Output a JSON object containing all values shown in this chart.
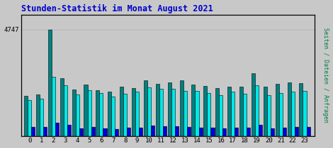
{
  "title": "Stunden-Statistik im Monat August 2021",
  "ylabel": "Seiten / Dateien / Anfragen",
  "ytick_label": "4747",
  "background_color": "#c8c8c8",
  "plot_bg_color": "#c8c8c8",
  "title_color": "#0000cc",
  "ylabel_color": "#008040",
  "bar_colors": [
    "#008080",
    "#00e8e8",
    "#0000dd"
  ],
  "bar_edge_color": "#000000",
  "bar_width": 0.3,
  "hours": [
    0,
    1,
    2,
    3,
    4,
    5,
    6,
    7,
    8,
    9,
    10,
    11,
    12,
    13,
    14,
    15,
    16,
    17,
    18,
    19,
    20,
    21,
    22,
    23
  ],
  "values_green": [
    1800,
    1850,
    4747,
    2580,
    2080,
    2280,
    2050,
    1980,
    2180,
    2120,
    2480,
    2330,
    2380,
    2490,
    2280,
    2230,
    2130,
    2180,
    2180,
    2780,
    2180,
    2330,
    2380,
    2340
  ],
  "values_cyan": [
    1600,
    1650,
    2650,
    2250,
    1850,
    2050,
    1900,
    1750,
    1870,
    1960,
    2160,
    2100,
    2110,
    2010,
    2010,
    1910,
    1810,
    1960,
    1870,
    2270,
    1810,
    1910,
    1960,
    2010
  ],
  "values_blue": [
    400,
    400,
    600,
    500,
    350,
    400,
    350,
    300,
    360,
    370,
    450,
    420,
    430,
    400,
    380,
    370,
    340,
    370,
    360,
    500,
    350,
    380,
    390,
    400
  ]
}
